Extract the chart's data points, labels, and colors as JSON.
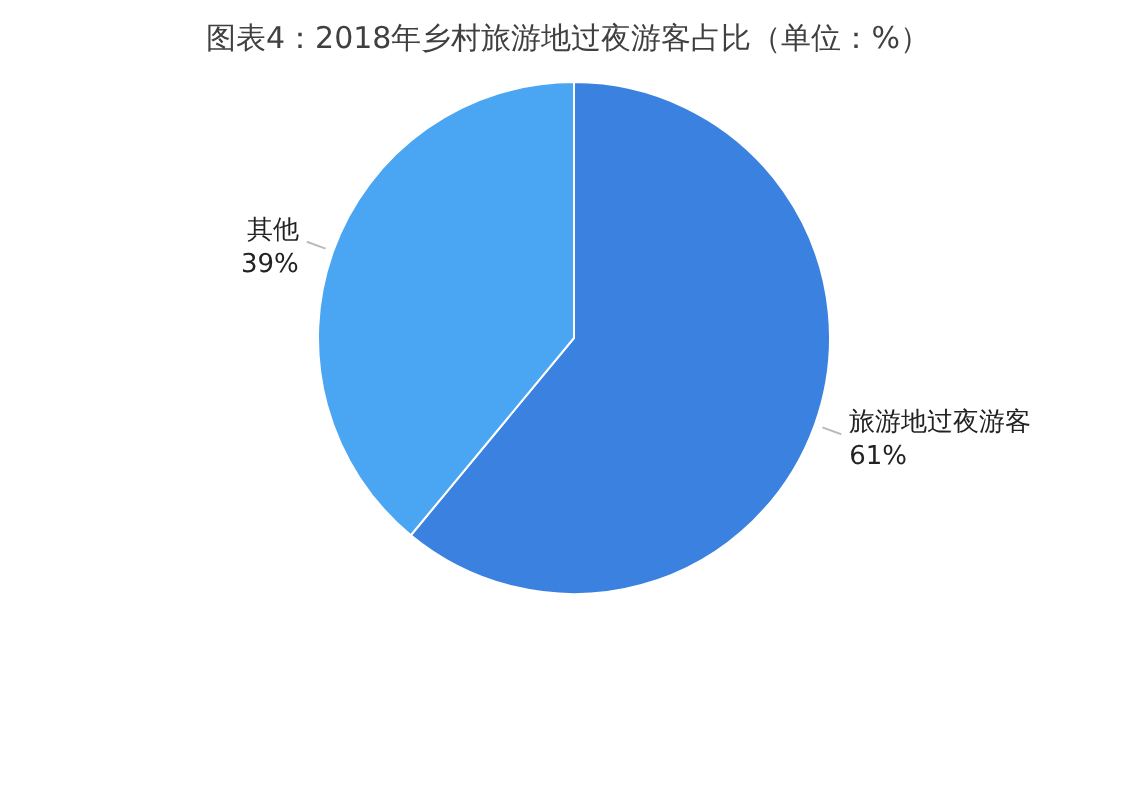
{
  "chart_data": {
    "type": "pie",
    "title": "图表4：2018年乡村旅游地过夜游客占比（单位：%）",
    "categories": [
      "旅游地过夜游客",
      "其他"
    ],
    "values": [
      61,
      39
    ],
    "value_labels": [
      "61%",
      "39%"
    ],
    "colors": [
      "#3b82e0",
      "#4aa6f2"
    ]
  }
}
